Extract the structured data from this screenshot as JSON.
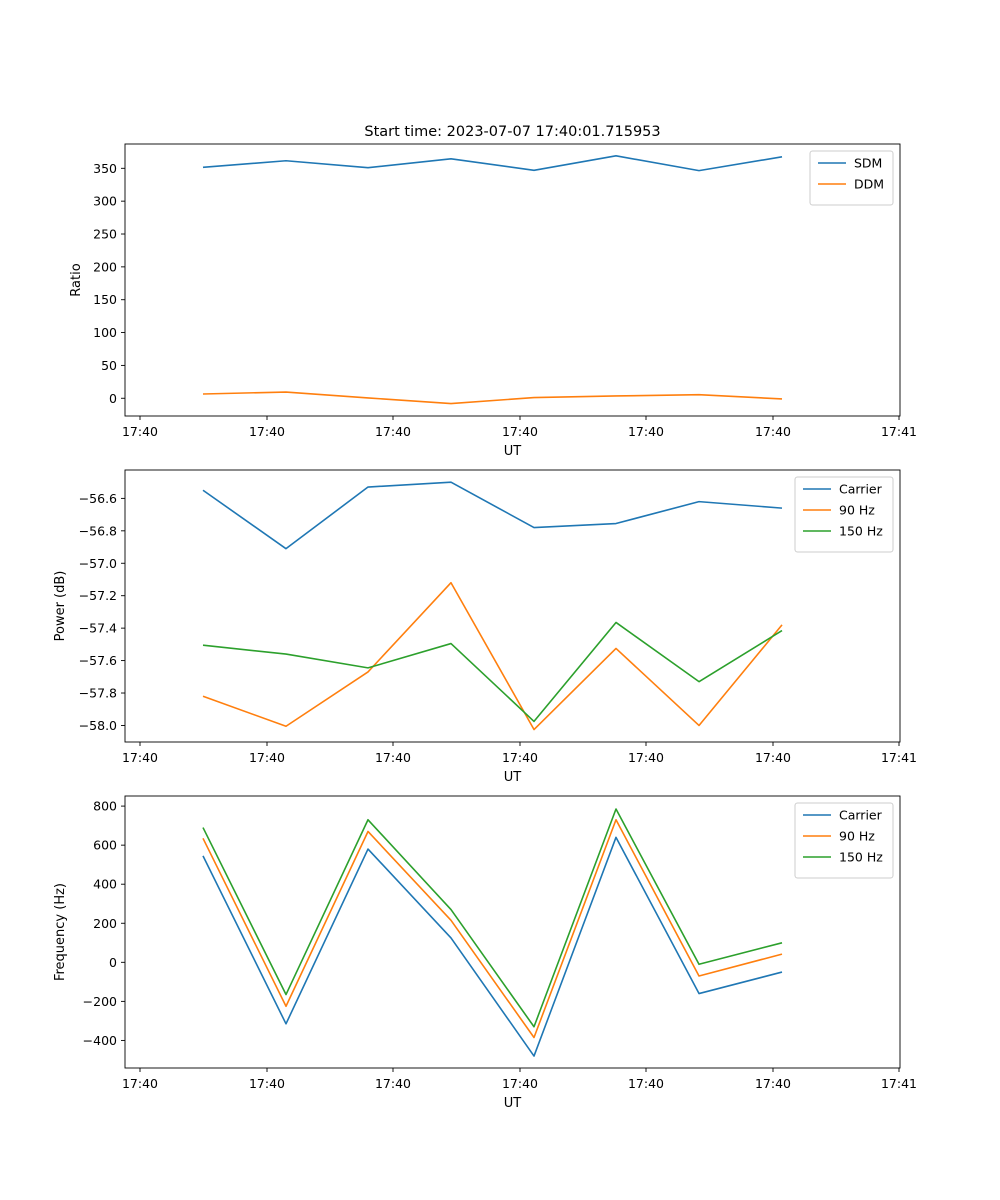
{
  "chart_data": [
    {
      "type": "line",
      "title": "Start time: 2023-07-07 17:40:01.715953",
      "xlabel": "UT",
      "ylabel": "Ratio",
      "x_tick_labels": [
        "17:40",
        "17:40",
        "17:40",
        "17:40",
        "17:40",
        "17:40",
        "17:41"
      ],
      "y_ticks": [
        0,
        50,
        100,
        150,
        200,
        250,
        300,
        350
      ],
      "ylim": [
        -27,
        387
      ],
      "grid": false,
      "legend": "top-right",
      "series": [
        {
          "name": "SDM",
          "color": "#1f77b4",
          "values": [
            351.5,
            361.5,
            351,
            364.5,
            347,
            369,
            346.5,
            367.5
          ]
        },
        {
          "name": "DDM",
          "color": "#ff7f0e",
          "values": [
            6.5,
            9.5,
            0.5,
            -8,
            1,
            3.5,
            5.5,
            -1
          ]
        }
      ]
    },
    {
      "type": "line",
      "title": "",
      "xlabel": "UT",
      "ylabel": "Power (dB)",
      "x_tick_labels": [
        "17:40",
        "17:40",
        "17:40",
        "17:40",
        "17:40",
        "17:40",
        "17:41"
      ],
      "y_ticks": [
        -58.0,
        -57.8,
        -57.6,
        -57.4,
        -57.2,
        -57.0,
        -56.8,
        -56.6
      ],
      "y_tick_labels": [
        "−58.0",
        "−57.8",
        "−57.6",
        "−57.4",
        "−57.2",
        "−57.0",
        "−56.8",
        "−56.6"
      ],
      "ylim": [
        -58.102,
        -56.425
      ],
      "grid": false,
      "legend": "top-right",
      "series": [
        {
          "name": "Carrier",
          "color": "#1f77b4",
          "values": [
            -56.55,
            -56.91,
            -56.53,
            -56.5,
            -56.78,
            -56.755,
            -56.62,
            -56.66
          ]
        },
        {
          "name": "90 Hz",
          "color": "#ff7f0e",
          "values": [
            -57.82,
            -58.005,
            -57.67,
            -57.12,
            -58.025,
            -57.525,
            -58.0,
            -57.38
          ]
        },
        {
          "name": "150 Hz",
          "color": "#2ca02c",
          "values": [
            -57.505,
            -57.56,
            -57.645,
            -57.495,
            -57.975,
            -57.365,
            -57.73,
            -57.415
          ]
        }
      ]
    },
    {
      "type": "line",
      "title": "",
      "xlabel": "UT",
      "ylabel": "Frequency (Hz)",
      "x_tick_labels": [
        "17:40",
        "17:40",
        "17:40",
        "17:40",
        "17:40",
        "17:40",
        "17:41"
      ],
      "y_ticks": [
        -400,
        -200,
        0,
        200,
        400,
        600,
        800
      ],
      "y_tick_labels": [
        "−400",
        "−200",
        "0",
        "200",
        "400",
        "600",
        "800"
      ],
      "ylim": [
        -541.2,
        851.7
      ],
      "grid": false,
      "legend": "top-right",
      "series": [
        {
          "name": "Carrier",
          "color": "#1f77b4",
          "values": [
            545,
            -315,
            580,
            125,
            -480,
            640,
            -160,
            -50
          ]
        },
        {
          "name": "90 Hz",
          "color": "#ff7f0e",
          "values": [
            635,
            -225,
            670,
            215,
            -385,
            730,
            -70,
            42
          ]
        },
        {
          "name": "150 Hz",
          "color": "#2ca02c",
          "values": [
            690,
            -165,
            730,
            270,
            -330,
            785,
            -10,
            100
          ]
        }
      ]
    }
  ]
}
